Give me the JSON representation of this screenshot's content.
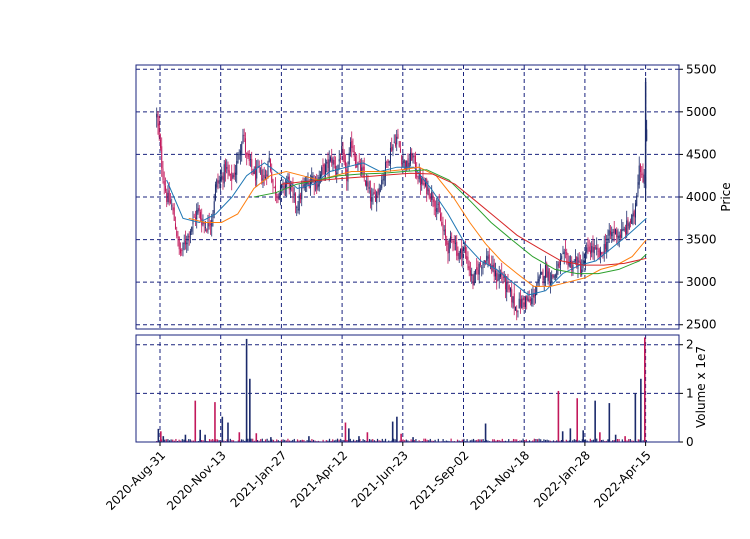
{
  "chart_data": {
    "type": "candlestick",
    "grid": true,
    "x_tick_labels": [
      "2020-Aug-31",
      "2020-Nov-13",
      "2021-Jan-27",
      "2021-Apr-12",
      "2021-Jun-23",
      "2021-Sep-02",
      "2021-Nov-18",
      "2022-Jan-28",
      "2022-Apr-15"
    ],
    "price_panel": {
      "ylabel": "Price",
      "ylim": [
        2450,
        5550
      ],
      "yticks": [
        2500,
        3000,
        3500,
        4000,
        4500,
        5000,
        5500
      ],
      "close_series": [
        [
          "2020-08-27",
          4950
        ],
        [
          "2020-09-03",
          4300
        ],
        [
          "2020-09-08",
          4000
        ],
        [
          "2020-09-14",
          3900
        ],
        [
          "2020-09-20",
          3600
        ],
        [
          "2020-09-24",
          3330
        ],
        [
          "2020-09-28",
          3400
        ],
        [
          "2020-10-04",
          3550
        ],
        [
          "2020-10-10",
          3700
        ],
        [
          "2020-10-16",
          3850
        ],
        [
          "2020-10-22",
          3700
        ],
        [
          "2020-10-28",
          3650
        ],
        [
          "2020-11-03",
          3800
        ],
        [
          "2020-11-07",
          4150
        ],
        [
          "2020-11-13",
          4200
        ],
        [
          "2020-11-19",
          4350
        ],
        [
          "2020-11-25",
          4200
        ],
        [
          "2020-12-01",
          4300
        ],
        [
          "2020-12-07",
          4600
        ],
        [
          "2020-12-11",
          4750
        ],
        [
          "2020-12-15",
          4450
        ],
        [
          "2020-12-21",
          4350
        ],
        [
          "2020-12-25",
          4250
        ],
        [
          "2020-12-31",
          4300
        ],
        [
          "2021-01-06",
          4200
        ],
        [
          "2021-01-12",
          4450
        ],
        [
          "2021-01-17",
          4100
        ],
        [
          "2021-01-23",
          4050
        ],
        [
          "2021-01-29",
          4100
        ],
        [
          "2021-02-04",
          4200
        ],
        [
          "2021-02-10",
          4000
        ],
        [
          "2021-02-16",
          3900
        ],
        [
          "2021-02-22",
          4100
        ],
        [
          "2021-02-28",
          4150
        ],
        [
          "2021-03-06",
          4250
        ],
        [
          "2021-03-12",
          4150
        ],
        [
          "2021-03-18",
          4300
        ],
        [
          "2021-03-24",
          4350
        ],
        [
          "2021-03-30",
          4450
        ],
        [
          "2021-04-05",
          4300
        ],
        [
          "2021-04-11",
          4550
        ],
        [
          "2021-04-17",
          4200
        ],
        [
          "2021-04-23",
          4650
        ],
        [
          "2021-04-29",
          4400
        ],
        [
          "2021-05-05",
          4300
        ],
        [
          "2021-05-11",
          4150
        ],
        [
          "2021-05-17",
          3950
        ],
        [
          "2021-05-23",
          4050
        ],
        [
          "2021-05-29",
          4200
        ],
        [
          "2021-06-04",
          4400
        ],
        [
          "2021-06-10",
          4600
        ],
        [
          "2021-06-16",
          4700
        ],
        [
          "2021-06-22",
          4450
        ],
        [
          "2021-06-28",
          4350
        ],
        [
          "2021-07-04",
          4500
        ],
        [
          "2021-07-10",
          4250
        ],
        [
          "2021-07-16",
          4150
        ],
        [
          "2021-07-22",
          4100
        ],
        [
          "2021-07-28",
          4000
        ],
        [
          "2021-08-03",
          3850
        ],
        [
          "2021-08-09",
          3600
        ],
        [
          "2021-08-15",
          3400
        ],
        [
          "2021-08-21",
          3550
        ],
        [
          "2021-08-27",
          3300
        ],
        [
          "2021-09-02",
          3400
        ],
        [
          "2021-09-08",
          3200
        ],
        [
          "2021-09-14",
          3000
        ],
        [
          "2021-09-20",
          3150
        ],
        [
          "2021-09-26",
          3250
        ],
        [
          "2021-10-02",
          3300
        ],
        [
          "2021-10-08",
          3150
        ],
        [
          "2021-10-14",
          3050
        ],
        [
          "2021-10-20",
          3100
        ],
        [
          "2021-10-26",
          2950
        ],
        [
          "2021-11-01",
          2850
        ],
        [
          "2021-11-07",
          2700
        ],
        [
          "2021-11-13",
          2750
        ],
        [
          "2021-11-19",
          2800
        ],
        [
          "2021-11-25",
          2750
        ],
        [
          "2021-12-01",
          2900
        ],
        [
          "2021-12-07",
          3050
        ],
        [
          "2021-12-13",
          3150
        ],
        [
          "2021-12-19",
          3050
        ],
        [
          "2021-12-25",
          3100
        ],
        [
          "2021-12-31",
          3250
        ],
        [
          "2022-01-06",
          3300
        ],
        [
          "2022-01-12",
          3200
        ],
        [
          "2022-01-18",
          3250
        ],
        [
          "2022-01-24",
          3150
        ],
        [
          "2022-01-30",
          3350
        ],
        [
          "2022-02-05",
          3400
        ],
        [
          "2022-02-11",
          3350
        ],
        [
          "2022-02-17",
          3300
        ],
        [
          "2022-02-23",
          3450
        ],
        [
          "2022-03-01",
          3550
        ],
        [
          "2022-03-07",
          3600
        ],
        [
          "2022-03-13",
          3550
        ],
        [
          "2022-03-19",
          3600
        ],
        [
          "2022-03-25",
          3700
        ],
        [
          "2022-03-31",
          3750
        ],
        [
          "2022-04-04",
          4100
        ],
        [
          "2022-04-07",
          4400
        ],
        [
          "2022-04-10",
          4300
        ],
        [
          "2022-04-13",
          4200
        ],
        [
          "2022-04-16",
          4800
        ]
      ],
      "moving_averages": [
        {
          "color": "#1f77b4",
          "values": [
            [
              "2020-09-08",
              4200
            ],
            [
              "2020-09-28",
              3750
            ],
            [
              "2020-10-18",
              3700
            ],
            [
              "2020-11-07",
              3800
            ],
            [
              "2020-11-27",
              4000
            ],
            [
              "2020-12-15",
              4250
            ],
            [
              "2021-01-06",
              4400
            ],
            [
              "2021-01-27",
              4250
            ],
            [
              "2021-02-16",
              4100
            ],
            [
              "2021-03-08",
              4150
            ],
            [
              "2021-03-28",
              4300
            ],
            [
              "2021-04-17",
              4350
            ],
            [
              "2021-05-07",
              4400
            ],
            [
              "2021-05-27",
              4300
            ],
            [
              "2021-06-16",
              4350
            ],
            [
              "2021-07-06",
              4350
            ],
            [
              "2021-07-26",
              4100
            ],
            [
              "2021-08-15",
              3800
            ],
            [
              "2021-09-04",
              3450
            ],
            [
              "2021-09-24",
              3250
            ],
            [
              "2021-10-14",
              3150
            ],
            [
              "2021-11-03",
              3000
            ],
            [
              "2021-11-23",
              2850
            ],
            [
              "2021-12-13",
              2900
            ],
            [
              "2022-01-02",
              3100
            ],
            [
              "2022-01-22",
              3200
            ],
            [
              "2022-02-11",
              3250
            ],
            [
              "2022-03-03",
              3400
            ],
            [
              "2022-03-23",
              3550
            ],
            [
              "2022-04-16",
              3750
            ]
          ]
        },
        {
          "color": "#ff7f0e",
          "values": [
            [
              "2020-10-05",
              3750
            ],
            [
              "2020-10-25",
              3700
            ],
            [
              "2020-11-14",
              3700
            ],
            [
              "2020-12-04",
              3800
            ],
            [
              "2020-12-24",
              4100
            ],
            [
              "2021-01-13",
              4250
            ],
            [
              "2021-02-02",
              4300
            ],
            [
              "2021-02-22",
              4250
            ],
            [
              "2021-03-14",
              4200
            ],
            [
              "2021-04-03",
              4250
            ],
            [
              "2021-04-23",
              4300
            ],
            [
              "2021-05-13",
              4300
            ],
            [
              "2021-06-02",
              4300
            ],
            [
              "2021-06-22",
              4320
            ],
            [
              "2021-07-12",
              4350
            ],
            [
              "2021-08-01",
              4250
            ],
            [
              "2021-08-21",
              4000
            ],
            [
              "2021-09-10",
              3700
            ],
            [
              "2021-09-30",
              3450
            ],
            [
              "2021-10-20",
              3250
            ],
            [
              "2021-11-09",
              3100
            ],
            [
              "2021-11-29",
              2950
            ],
            [
              "2021-12-19",
              2950
            ],
            [
              "2022-01-08",
              3000
            ],
            [
              "2022-01-28",
              3050
            ],
            [
              "2022-02-17",
              3150
            ],
            [
              "2022-03-09",
              3200
            ],
            [
              "2022-03-29",
              3300
            ],
            [
              "2022-04-16",
              3500
            ]
          ]
        },
        {
          "color": "#2ca02c",
          "values": [
            [
              "2020-12-24",
              4000
            ],
            [
              "2021-01-20",
              4050
            ],
            [
              "2021-02-15",
              4150
            ],
            [
              "2021-03-13",
              4200
            ],
            [
              "2021-04-08",
              4250
            ],
            [
              "2021-05-04",
              4270
            ],
            [
              "2021-05-30",
              4280
            ],
            [
              "2021-06-25",
              4300
            ],
            [
              "2021-07-21",
              4320
            ],
            [
              "2021-08-16",
              4200
            ],
            [
              "2021-09-11",
              3950
            ],
            [
              "2021-10-07",
              3700
            ],
            [
              "2021-11-02",
              3500
            ],
            [
              "2021-11-28",
              3300
            ],
            [
              "2021-12-24",
              3150
            ],
            [
              "2022-01-19",
              3100
            ],
            [
              "2022-02-14",
              3100
            ],
            [
              "2022-03-12",
              3150
            ],
            [
              "2022-04-07",
              3250
            ],
            [
              "2022-04-16",
              3330
            ]
          ]
        },
        {
          "color": "#d62728",
          "values": [
            [
              "2021-01-27",
              4150
            ],
            [
              "2021-02-22",
              4180
            ],
            [
              "2021-03-20",
              4200
            ],
            [
              "2021-04-15",
              4220
            ],
            [
              "2021-05-11",
              4240
            ],
            [
              "2021-06-06",
              4260
            ],
            [
              "2021-07-02",
              4280
            ],
            [
              "2021-07-28",
              4270
            ],
            [
              "2021-08-23",
              4150
            ],
            [
              "2021-09-18",
              3950
            ],
            [
              "2021-10-14",
              3750
            ],
            [
              "2021-11-09",
              3550
            ],
            [
              "2021-12-05",
              3400
            ],
            [
              "2021-12-31",
              3250
            ],
            [
              "2022-01-26",
              3200
            ],
            [
              "2022-02-21",
              3200
            ],
            [
              "2022-03-19",
              3220
            ],
            [
              "2022-04-16",
              3280
            ]
          ]
        }
      ]
    },
    "volume_panel": {
      "ylabel": "Volume x 1e7",
      "ylim": [
        0,
        2.2
      ],
      "yticks": [
        0,
        1,
        2
      ],
      "base_volume": 0.05,
      "spikes": [
        [
          "2020-08-29",
          0.27
        ],
        [
          "2020-09-01",
          0.22
        ],
        [
          "2020-09-04",
          0.12
        ],
        [
          "2020-10-01",
          0.15
        ],
        [
          "2020-10-13",
          0.85
        ],
        [
          "2020-10-19",
          0.25
        ],
        [
          "2020-10-25",
          0.15
        ],
        [
          "2020-11-06",
          0.82
        ],
        [
          "2020-11-15",
          0.52
        ],
        [
          "2020-11-22",
          0.4
        ],
        [
          "2020-12-06",
          0.2
        ],
        [
          "2020-12-15",
          2.12
        ],
        [
          "2020-12-19",
          1.3
        ],
        [
          "2020-12-27",
          0.18
        ],
        [
          "2021-01-14",
          0.1
        ],
        [
          "2021-03-02",
          0.12
        ],
        [
          "2021-04-16",
          0.4
        ],
        [
          "2021-04-20",
          0.28
        ],
        [
          "2021-05-02",
          0.12
        ],
        [
          "2021-05-12",
          0.2
        ],
        [
          "2021-06-11",
          0.42
        ],
        [
          "2021-06-16",
          0.52
        ],
        [
          "2021-06-21",
          0.17
        ],
        [
          "2021-07-05",
          0.1
        ],
        [
          "2021-09-30",
          0.38
        ],
        [
          "2021-12-28",
          1.05
        ],
        [
          "2022-01-02",
          0.22
        ],
        [
          "2022-01-11",
          0.28
        ],
        [
          "2022-01-19",
          0.9
        ],
        [
          "2022-01-26",
          0.24
        ],
        [
          "2022-02-10",
          0.85
        ],
        [
          "2022-02-16",
          0.2
        ],
        [
          "2022-02-28",
          0.8
        ],
        [
          "2022-03-08",
          0.15
        ],
        [
          "2022-03-20",
          0.12
        ],
        [
          "2022-04-02",
          1.0
        ],
        [
          "2022-04-09",
          1.3
        ],
        [
          "2022-04-14",
          2.15
        ]
      ]
    }
  },
  "colors": {
    "up": "#1b2a6b",
    "down": "#c2185b",
    "grid": "#1a237e",
    "frame": "#1a237e"
  }
}
